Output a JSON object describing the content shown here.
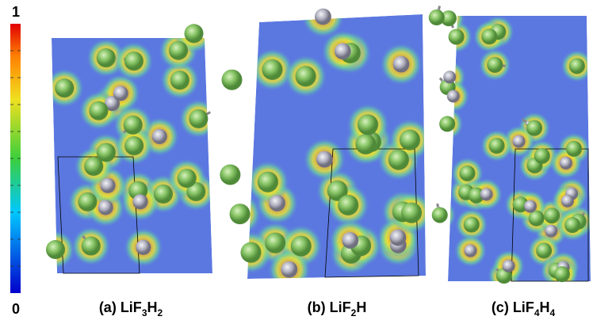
{
  "colorbar": {
    "top_label": "1",
    "bottom_label": "0"
  },
  "panels": [
    {
      "label": "(a)",
      "formula_parts": [
        "LiF",
        "3",
        "H",
        "2"
      ]
    },
    {
      "label": "(b)",
      "formula_parts": [
        "LiF",
        "2",
        "H"
      ]
    },
    {
      "label": "(c)",
      "formula_parts": [
        "LiF",
        "4",
        "H",
        "4"
      ]
    }
  ]
}
